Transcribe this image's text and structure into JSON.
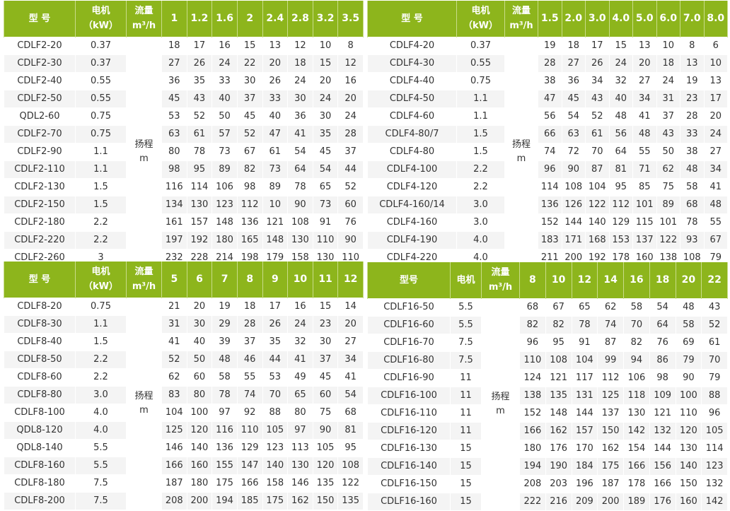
{
  "colors": {
    "header_bg": "#8db51c",
    "header_text": "#ffffff",
    "row_alt": "#f4f4f4"
  },
  "tables": [
    {
      "headers": {
        "model": "型 号",
        "motor": "电机",
        "motor_unit": "（kW）",
        "flow": "流量",
        "flow_unit": "m³/h"
      },
      "flows": [
        "1",
        "1.2",
        "1.6",
        "2",
        "2.4",
        "2.8",
        "3.2",
        "3.5"
      ],
      "head_label": "扬程",
      "head_unit": "m",
      "rows": [
        {
          "model": "CDLF2-20",
          "kw": "0.37",
          "values": [
            "18",
            "17",
            "16",
            "15",
            "13",
            "12",
            "10",
            "8"
          ]
        },
        {
          "model": "CDLF2-30",
          "kw": "0.37",
          "values": [
            "27",
            "26",
            "24",
            "22",
            "20",
            "18",
            "15",
            "12"
          ]
        },
        {
          "model": "CDLF2-40",
          "kw": "0.55",
          "values": [
            "36",
            "35",
            "33",
            "30",
            "26",
            "24",
            "20",
            "16"
          ]
        },
        {
          "model": "CDLF2-50",
          "kw": "0.55",
          "values": [
            "45",
            "43",
            "40",
            "37",
            "33",
            "30",
            "24",
            "20"
          ]
        },
        {
          "model": "QDL2-60",
          "kw": "0.75",
          "values": [
            "53",
            "52",
            "50",
            "45",
            "40",
            "36",
            "30",
            "24"
          ]
        },
        {
          "model": "CDLF2-70",
          "kw": "0.75",
          "values": [
            "63",
            "61",
            "57",
            "52",
            "47",
            "41",
            "35",
            "28"
          ]
        },
        {
          "model": "CDLF2-90",
          "kw": "1.1",
          "values": [
            "80",
            "78",
            "73",
            "67",
            "61",
            "54",
            "45",
            "37"
          ]
        },
        {
          "model": "CDLF2-110",
          "kw": "1.1",
          "values": [
            "98",
            "95",
            "89",
            "82",
            "73",
            "64",
            "54",
            "44"
          ]
        },
        {
          "model": "CDLF2-130",
          "kw": "1.5",
          "values": [
            "116",
            "114",
            "106",
            "98",
            "89",
            "78",
            "65",
            "52"
          ]
        },
        {
          "model": "CDLF2-150",
          "kw": "1.5",
          "values": [
            "134",
            "130",
            "123",
            "112",
            "10",
            "90",
            "73",
            "60"
          ]
        },
        {
          "model": "CDLF2-180",
          "kw": "2.2",
          "values": [
            "161",
            "157",
            "148",
            "136",
            "121",
            "108",
            "91",
            "76"
          ]
        },
        {
          "model": "CDLF2-220",
          "kw": "2.2",
          "values": [
            "197",
            "192",
            "180",
            "165",
            "148",
            "130",
            "110",
            "90"
          ]
        },
        {
          "model": "CDLF2-260",
          "kw": "3",
          "values": [
            "232",
            "228",
            "214",
            "198",
            "179",
            "158",
            "130",
            "110"
          ]
        }
      ]
    },
    {
      "headers": {
        "model": "型 号",
        "motor": "电机",
        "motor_unit": "（kW）",
        "flow": "流量",
        "flow_unit": "m³/h"
      },
      "flows": [
        "1.5",
        "2.0",
        "3.0",
        "4.0",
        "5.0",
        "6.0",
        "7.0",
        "8.0"
      ],
      "head_label": "扬程",
      "head_unit": "m",
      "rows": [
        {
          "model": "CDLF4-20",
          "kw": "0.37",
          "values": [
            "19",
            "18",
            "17",
            "15",
            "13",
            "10",
            "8",
            "6"
          ]
        },
        {
          "model": "CDLF4-30",
          "kw": "0.55",
          "values": [
            "28",
            "27",
            "26",
            "24",
            "20",
            "18",
            "13",
            "10"
          ]
        },
        {
          "model": "CDLF4-40",
          "kw": "0.75",
          "values": [
            "38",
            "36",
            "34",
            "32",
            "27",
            "24",
            "19",
            "13"
          ]
        },
        {
          "model": "CDLF4-50",
          "kw": "1.1",
          "values": [
            "47",
            "45",
            "43",
            "40",
            "34",
            "31",
            "23",
            "17"
          ]
        },
        {
          "model": "CDLF4-60",
          "kw": "1.1",
          "values": [
            "56",
            "54",
            "52",
            "48",
            "41",
            "37",
            "28",
            "20"
          ]
        },
        {
          "model": "CDLF4-80/7",
          "kw": "1.5",
          "values": [
            "66",
            "63",
            "61",
            "56",
            "48",
            "43",
            "33",
            "24"
          ]
        },
        {
          "model": "CDLF4-80",
          "kw": "1.5",
          "values": [
            "74",
            "72",
            "70",
            "64",
            "55",
            "50",
            "38",
            "27"
          ]
        },
        {
          "model": "CDLF4-100",
          "kw": "2.2",
          "values": [
            "96",
            "90",
            "87",
            "81",
            "71",
            "62",
            "48",
            "34"
          ]
        },
        {
          "model": "CDLF4-120",
          "kw": "2.2",
          "values": [
            "114",
            "108",
            "104",
            "95",
            "85",
            "75",
            "58",
            "41"
          ]
        },
        {
          "model": "CDLF4-160/14",
          "kw": "3.0",
          "values": [
            "136",
            "126",
            "122",
            "112",
            "101",
            "89",
            "68",
            "48"
          ]
        },
        {
          "model": "CDLF4-160",
          "kw": "3.0",
          "values": [
            "152",
            "144",
            "140",
            "129",
            "115",
            "101",
            "78",
            "55"
          ]
        },
        {
          "model": "CDLF4-190",
          "kw": "4.0",
          "values": [
            "183",
            "171",
            "168",
            "153",
            "137",
            "122",
            "93",
            "67"
          ]
        },
        {
          "model": "CDLF4-220",
          "kw": "4.0",
          "values": [
            "211",
            "200",
            "192",
            "178",
            "160",
            "138",
            "108",
            "79"
          ]
        }
      ]
    },
    {
      "headers": {
        "model": "型 号",
        "motor": "电机",
        "motor_unit": "（kW）",
        "flow": "流量",
        "flow_unit": "m³/h"
      },
      "flows": [
        "5",
        "6",
        "7",
        "8",
        "9",
        "10",
        "11",
        "12"
      ],
      "head_label": "扬程",
      "head_unit": "m",
      "rows": [
        {
          "model": "CDLF8-20",
          "kw": "0.75",
          "values": [
            "21",
            "20",
            "19",
            "18",
            "17",
            "16",
            "15",
            "14"
          ]
        },
        {
          "model": "CDLF8-30",
          "kw": "1.1",
          "values": [
            "31",
            "30",
            "29",
            "28",
            "26",
            "24",
            "23",
            "20"
          ]
        },
        {
          "model": "CDLF8-40",
          "kw": "1.5",
          "values": [
            "41",
            "40",
            "39",
            "37",
            "35",
            "32",
            "30",
            "27"
          ]
        },
        {
          "model": "CDLF8-50",
          "kw": "2.2",
          "values": [
            "52",
            "50",
            "48",
            "46",
            "44",
            "41",
            "37",
            "34"
          ]
        },
        {
          "model": "CDLF8-60",
          "kw": "2.2",
          "values": [
            "62",
            "60",
            "58",
            "55",
            "53",
            "49",
            "45",
            "41"
          ]
        },
        {
          "model": "CDLF8-80",
          "kw": "3.0",
          "values": [
            "83",
            "80",
            "78",
            "74",
            "70",
            "65",
            "60",
            "54"
          ]
        },
        {
          "model": "CDLF8-100",
          "kw": "4.0",
          "values": [
            "104",
            "100",
            "97",
            "92",
            "88",
            "80",
            "75",
            "68"
          ]
        },
        {
          "model": "QDL8-120",
          "kw": "4.0",
          "values": [
            "125",
            "120",
            "116",
            "110",
            "105",
            "97",
            "90",
            "81"
          ]
        },
        {
          "model": "QDL8-140",
          "kw": "5.5",
          "values": [
            "146",
            "140",
            "136",
            "129",
            "123",
            "113",
            "105",
            "95"
          ]
        },
        {
          "model": "CDLF8-160",
          "kw": "5.5",
          "values": [
            "166",
            "160",
            "155",
            "147",
            "140",
            "130",
            "120",
            "108"
          ]
        },
        {
          "model": "CDLF8-180",
          "kw": "7.5",
          "values": [
            "187",
            "180",
            "175",
            "166",
            "158",
            "146",
            "135",
            "122"
          ]
        },
        {
          "model": "CDLF8-200",
          "kw": "7.5",
          "values": [
            "208",
            "200",
            "194",
            "185",
            "175",
            "162",
            "150",
            "135"
          ]
        }
      ]
    },
    {
      "headers": {
        "model": "型号",
        "motor": "电机",
        "motor_unit": "",
        "flow": "流量",
        "flow_unit": "m³/h"
      },
      "flows": [
        "8",
        "10",
        "12",
        "14",
        "16",
        "18",
        "20",
        "22"
      ],
      "head_label": "扬程",
      "head_unit": "m",
      "rows": [
        {
          "model": "CDLF16-50",
          "kw": "5.5",
          "values": [
            "68",
            "67",
            "65",
            "62",
            "58",
            "54",
            "48",
            "43"
          ]
        },
        {
          "model": "CDLF16-60",
          "kw": "5.5",
          "values": [
            "82",
            "82",
            "78",
            "74",
            "70",
            "64",
            "58",
            "52"
          ]
        },
        {
          "model": "CDLF16-70",
          "kw": "7.5",
          "values": [
            "96",
            "95",
            "91",
            "87",
            "82",
            "76",
            "69",
            "61"
          ]
        },
        {
          "model": "CDLF16-80",
          "kw": "7.5",
          "values": [
            "110",
            "108",
            "104",
            "99",
            "94",
            "86",
            "79",
            "70"
          ]
        },
        {
          "model": "CDLF16-90",
          "kw": "11",
          "values": [
            "124",
            "121",
            "117",
            "112",
            "106",
            "98",
            "90",
            "79"
          ]
        },
        {
          "model": "CDLF16-100",
          "kw": "11",
          "values": [
            "138",
            "135",
            "131",
            "125",
            "118",
            "109",
            "100",
            "88"
          ]
        },
        {
          "model": "CDLF16-110",
          "kw": "11",
          "values": [
            "152",
            "148",
            "144",
            "137",
            "130",
            "121",
            "110",
            "96"
          ]
        },
        {
          "model": "CDLF16-120",
          "kw": "11",
          "values": [
            "166",
            "162",
            "157",
            "150",
            "142",
            "132",
            "120",
            "105"
          ]
        },
        {
          "model": "CDLF16-130",
          "kw": "15",
          "values": [
            "180",
            "176",
            "170",
            "162",
            "154",
            "144",
            "130",
            "114"
          ]
        },
        {
          "model": "CDLF16-140",
          "kw": "15",
          "values": [
            "194",
            "190",
            "184",
            "175",
            "166",
            "156",
            "140",
            "123"
          ]
        },
        {
          "model": "CDLF16-150",
          "kw": "15",
          "values": [
            "208",
            "203",
            "196",
            "187",
            "178",
            "166",
            "150",
            "132"
          ]
        },
        {
          "model": "CDLF16-160",
          "kw": "15",
          "values": [
            "222",
            "216",
            "209",
            "200",
            "189",
            "176",
            "160",
            "142"
          ]
        }
      ]
    }
  ]
}
